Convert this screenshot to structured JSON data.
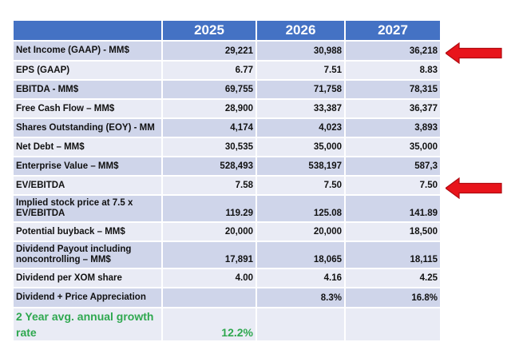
{
  "table": {
    "header": [
      "",
      "2025",
      "2026",
      "2027"
    ],
    "rows": [
      {
        "label": "Net Income (GAAP) - MM$",
        "values": [
          "29,221",
          "30,988",
          "36,218"
        ]
      },
      {
        "label": "EPS (GAAP)",
        "values": [
          "6.77",
          "7.51",
          "8.83"
        ]
      },
      {
        "label": "EBITDA - MM$",
        "values": [
          "69,755",
          "71,758",
          "78,315"
        ]
      },
      {
        "label": "Free Cash Flow – MM$",
        "values": [
          "28,900",
          "33,387",
          "36,377"
        ]
      },
      {
        "label": "Shares Outstanding (EOY) - MM",
        "values": [
          "4,174",
          "4,023",
          "3,893"
        ]
      },
      {
        "label": "Net Debt – MM$",
        "values": [
          "30,535",
          "35,000",
          "35,000"
        ]
      },
      {
        "label": "Enterprise Value – MM$",
        "values": [
          "528,493",
          "538,197",
          "587,3"
        ]
      },
      {
        "label": "EV/EBITDA",
        "values": [
          "7.58",
          "7.50",
          "7.50"
        ]
      },
      {
        "label": "Implied stock price at 7.5 x EV/EBITDA",
        "values": [
          "119.29",
          "125.08",
          "141.89"
        ]
      },
      {
        "label": "Potential buyback – MM$",
        "values": [
          "20,000",
          "20,000",
          "18,500"
        ]
      },
      {
        "label": "Dividend Payout including noncontrolling – MM$",
        "values": [
          "17,891",
          "18,065",
          "18,115"
        ]
      },
      {
        "label": "Dividend per XOM share",
        "values": [
          "4.00",
          "4.16",
          "4.25"
        ]
      },
      {
        "label": "Dividend + Price Appreciation",
        "values": [
          "",
          "8.3%",
          "16.8%"
        ]
      },
      {
        "label": "2 Year avg. annual growth rate",
        "values": [
          "12.2%",
          "",
          ""
        ]
      }
    ]
  },
  "annotations": {
    "arrow_color": "#e8141b",
    "arrows": [
      "net-income-arrow",
      "ev-ebitda-arrow"
    ]
  },
  "colors": {
    "header_bg": "#4472c4",
    "row_dark": "#cfd5ea",
    "row_light": "#e9ebf5",
    "highlight_green": "#2fa84f"
  }
}
